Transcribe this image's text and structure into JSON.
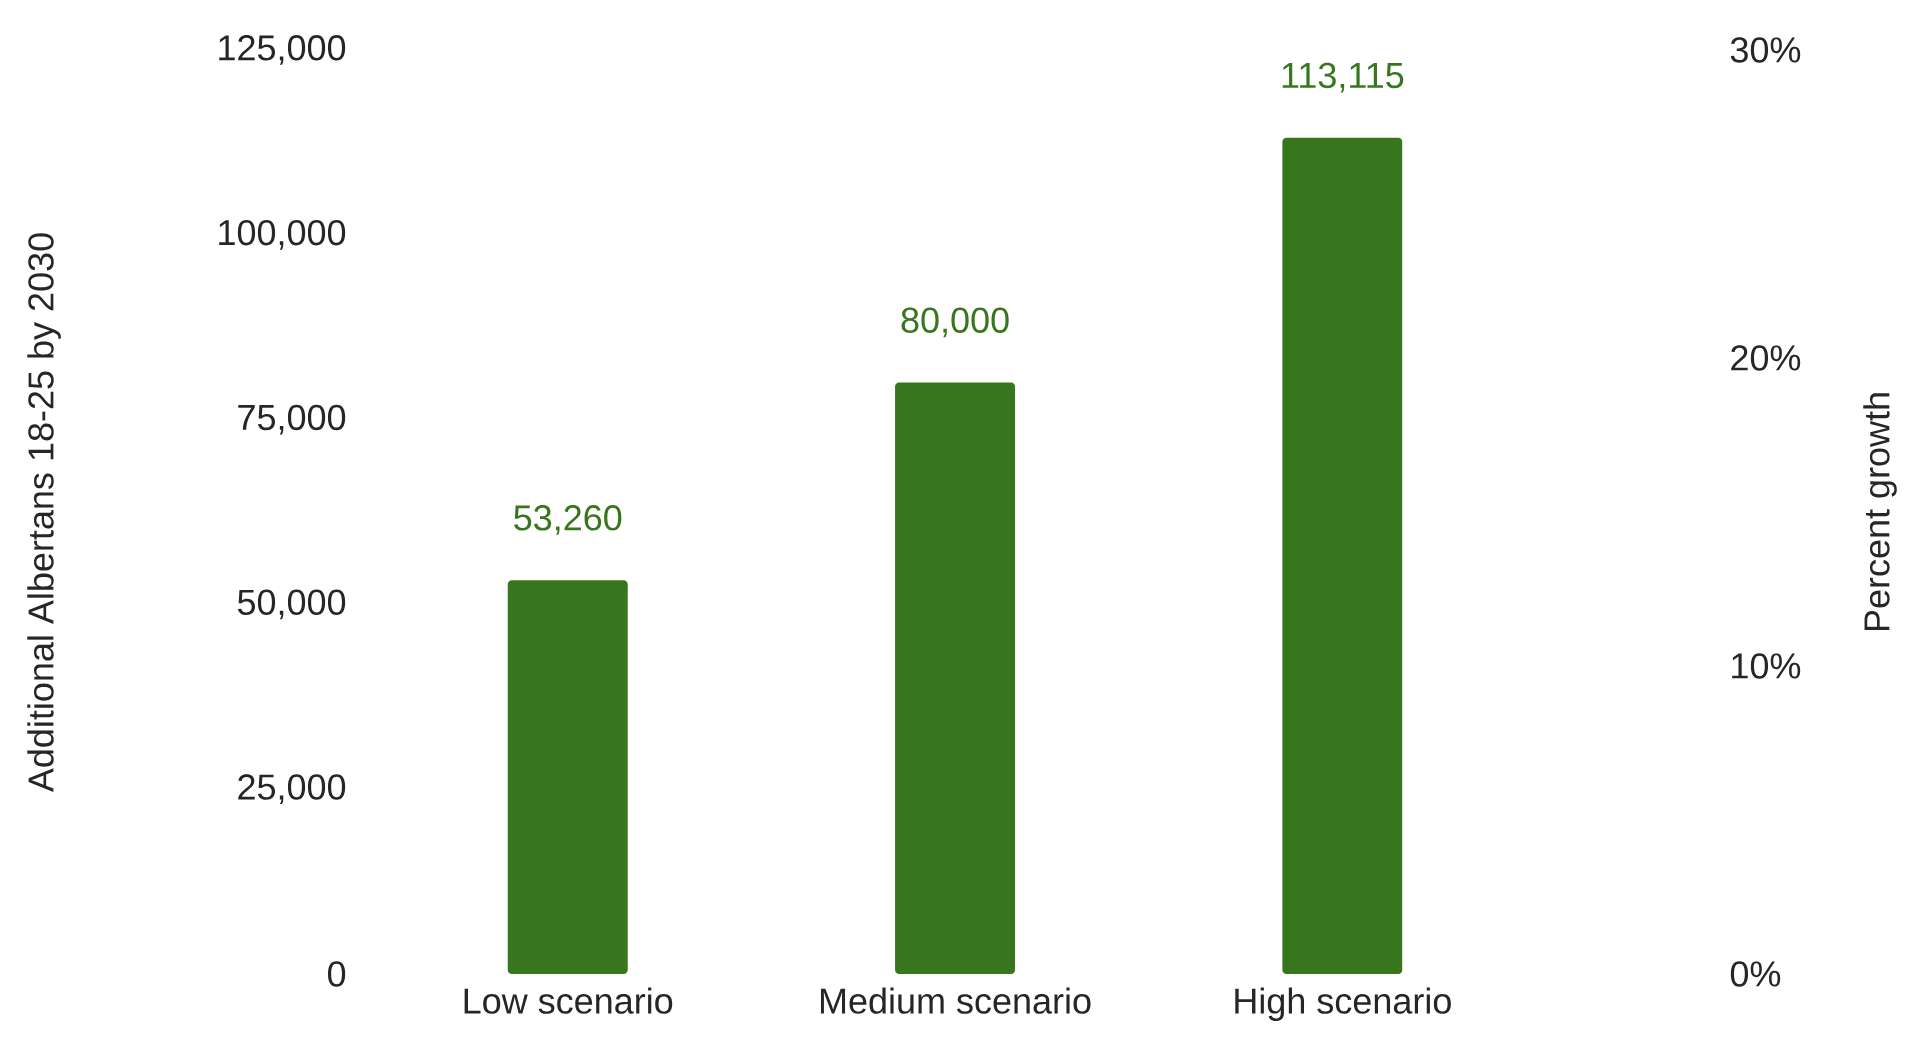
{
  "chart_data": {
    "type": "bar",
    "ylabel": "Additional Albertans 18-25 by 2030",
    "y2label": "Percent growth",
    "categories": [
      "Low scenario",
      "Medium scenario",
      "High scenario"
    ],
    "values": [
      53260,
      80000,
      113115
    ],
    "color": "#38761d",
    "value_labels": [
      "53,260",
      "80,000",
      "113,115"
    ],
    "ylim": [
      0,
      125000
    ],
    "yticks": [
      0,
      {
        "value": 25000,
        "label": "25,000"
      },
      {
        "value": 50000,
        "label": "50,000"
      },
      {
        "value": 75000,
        "label": "75,000"
      },
      {
        "value": 100000,
        "label": "100,000"
      },
      {
        "value": 125000,
        "label": "125,000"
      }
    ],
    "y2lim": [
      0,
      30
    ],
    "y2ticks": [
      {
        "value": 0,
        "label": "0%"
      },
      {
        "value": 10,
        "label": "10%"
      },
      {
        "value": 20,
        "label": "20%"
      },
      {
        "value": 30,
        "label": "30%"
      }
    ],
    "grid": false
  }
}
